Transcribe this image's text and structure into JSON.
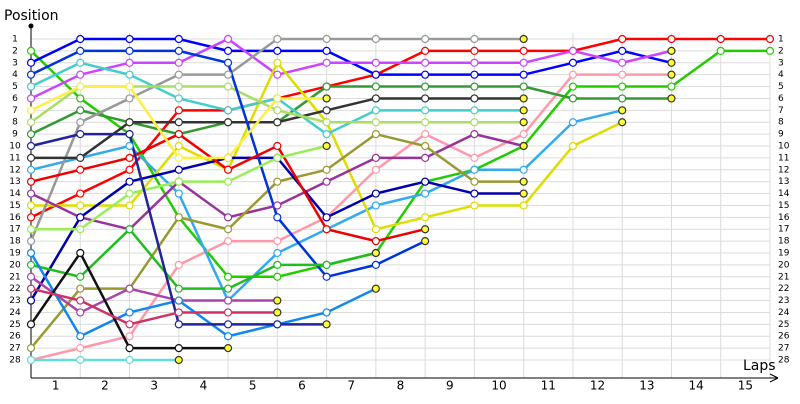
{
  "chart_data": {
    "type": "lapchart",
    "y_label": "Position",
    "x_label": "Laps",
    "x": [
      0,
      1,
      2,
      3,
      4,
      5,
      6,
      7,
      8,
      9,
      10,
      11,
      12,
      13,
      14,
      15
    ],
    "xlim": [
      0,
      15
    ],
    "xticks": [
      {
        "value": 0.5,
        "label": "1"
      },
      {
        "value": 1.5,
        "label": "2"
      },
      {
        "value": 2.5,
        "label": "3"
      },
      {
        "value": 3.5,
        "label": "4"
      },
      {
        "value": 4.5,
        "label": "5"
      },
      {
        "value": 5.5,
        "label": "6"
      },
      {
        "value": 6.5,
        "label": "7"
      },
      {
        "value": 7.5,
        "label": "8"
      },
      {
        "value": 8.5,
        "label": "9"
      },
      {
        "value": 9.5,
        "label": "10"
      },
      {
        "value": 10.5,
        "label": "11"
      },
      {
        "value": 11.5,
        "label": "12"
      },
      {
        "value": 12.5,
        "label": "13"
      },
      {
        "value": 13.5,
        "label": "14"
      },
      {
        "value": 14.5,
        "label": "15"
      }
    ],
    "ylim": [
      28,
      1
    ],
    "yticks": [
      1,
      2,
      3,
      4,
      5,
      6,
      7,
      8,
      9,
      10,
      11,
      12,
      13,
      14,
      15,
      16,
      17,
      18,
      19,
      20,
      21,
      22,
      23,
      24,
      25,
      26,
      27,
      28
    ],
    "grid": true,
    "series": [
      {
        "color": "#ff0000",
        "values": [
          16,
          14,
          12,
          7,
          7,
          6,
          5,
          4,
          2,
          2,
          2,
          2,
          1,
          1,
          1,
          1
        ]
      },
      {
        "color": "#22cc00",
        "values": [
          2,
          6,
          9,
          16,
          21,
          21,
          20,
          19,
          13,
          12,
          10,
          5,
          5,
          5,
          2,
          2
        ]
      },
      {
        "color": "#0000ff",
        "values": [
          3,
          1,
          1,
          1,
          2,
          2,
          2,
          4,
          4,
          4,
          4,
          3,
          2,
          3,
          null,
          null
        ]
      },
      {
        "color": "#cc44ff",
        "values": [
          6,
          4,
          3,
          3,
          1,
          4,
          3,
          3,
          3,
          3,
          3,
          2,
          3,
          2,
          null,
          null
        ]
      },
      {
        "color": "#ff99aa",
        "values": [
          28,
          27,
          26,
          20,
          18,
          18,
          16,
          12,
          9,
          11,
          9,
          4,
          4,
          4,
          null,
          null
        ]
      },
      {
        "color": "#339933",
        "values": [
          9,
          7,
          8,
          9,
          8,
          8,
          5,
          5,
          5,
          5,
          5,
          6,
          6,
          6,
          null,
          null
        ]
      },
      {
        "color": "#33aaee",
        "values": [
          12,
          11,
          10,
          14,
          23,
          19,
          17,
          15,
          14,
          12,
          12,
          8,
          7,
          null,
          null,
          null
        ]
      },
      {
        "color": "#dddd00",
        "values": [
          15,
          15,
          15,
          10,
          12,
          3,
          8,
          17,
          16,
          15,
          15,
          10,
          8,
          null,
          null,
          null
        ]
      },
      {
        "color": "#999999",
        "values": [
          18,
          8,
          6,
          4,
          4,
          1,
          1,
          1,
          1,
          1,
          1,
          null,
          null,
          null,
          null,
          null
        ]
      },
      {
        "color": "#333333",
        "values": [
          11,
          11,
          8,
          8,
          8,
          8,
          7,
          6,
          6,
          6,
          6,
          null,
          null,
          null,
          null,
          null
        ]
      },
      {
        "color": "#44cccc",
        "values": [
          5,
          3,
          4,
          6,
          7,
          6,
          9,
          7,
          7,
          7,
          7,
          null,
          null,
          null,
          null,
          null
        ]
      },
      {
        "color": "#aadd66",
        "values": [
          8,
          5,
          5,
          5,
          5,
          7,
          8,
          8,
          8,
          8,
          8,
          null,
          null,
          null,
          null,
          null
        ]
      },
      {
        "color": "#993399",
        "values": [
          14,
          16,
          17,
          13,
          16,
          15,
          13,
          11,
          11,
          9,
          10,
          null,
          null,
          null,
          null,
          null
        ]
      },
      {
        "color": "#999933",
        "values": [
          27,
          22,
          22,
          16,
          17,
          13,
          12,
          9,
          10,
          13,
          13,
          null,
          null,
          null,
          null,
          null
        ]
      },
      {
        "color": "#0000aa",
        "values": [
          23,
          16,
          13,
          12,
          11,
          11,
          16,
          14,
          13,
          14,
          14,
          null,
          null,
          null,
          null,
          null
        ]
      },
      {
        "color": "#0033dd",
        "values": [
          4,
          2,
          2,
          2,
          3,
          16,
          21,
          20,
          18,
          null,
          null,
          null,
          null,
          null,
          null,
          null
        ]
      },
      {
        "color": "#ee0000",
        "values": [
          13,
          12,
          11,
          9,
          12,
          10,
          17,
          18,
          17,
          null,
          null,
          null,
          null,
          null,
          null,
          null
        ]
      },
      {
        "color": "#99ee55",
        "values": [
          17,
          17,
          14,
          13,
          13,
          11,
          10,
          null,
          null,
          null,
          null,
          null,
          null,
          null,
          null,
          null
        ]
      },
      {
        "color": "#22bb22",
        "values": [
          20,
          21,
          17,
          22,
          22,
          20,
          20,
          19,
          null,
          null,
          null,
          null,
          null,
          null,
          null,
          null
        ]
      },
      {
        "color": "#aa44aa",
        "values": [
          21,
          24,
          22,
          23,
          23,
          23,
          null,
          null,
          null,
          null,
          null,
          null,
          null,
          null,
          null,
          null
        ]
      },
      {
        "color": "#1188ee",
        "values": [
          19,
          26,
          24,
          23,
          26,
          25,
          24,
          22,
          null,
          null,
          null,
          null,
          null,
          null,
          null,
          null
        ]
      },
      {
        "color": "#111111",
        "values": [
          25,
          19,
          27,
          27,
          27,
          null,
          null,
          null,
          null,
          null,
          null,
          null,
          null,
          null,
          null,
          null
        ]
      },
      {
        "color": "#66dddd",
        "values": [
          28,
          28,
          28,
          28,
          null,
          null,
          null,
          null,
          null,
          null,
          null,
          null,
          null,
          null,
          null,
          null
        ]
      },
      {
        "color": "#222299",
        "values": [
          10,
          9,
          9,
          25,
          25,
          25,
          25,
          null,
          null,
          null,
          null,
          null,
          null,
          null,
          null,
          null
        ]
      },
      {
        "color": "#ffee44",
        "values": [
          7,
          5,
          5,
          11,
          11,
          6,
          6,
          null,
          null,
          null,
          null,
          null,
          null,
          null,
          null,
          null
        ]
      },
      {
        "color": "#cc3366",
        "values": [
          22,
          23,
          25,
          24,
          24,
          24,
          null,
          null,
          null,
          null,
          null,
          null,
          null,
          null,
          null,
          null
        ]
      }
    ]
  }
}
